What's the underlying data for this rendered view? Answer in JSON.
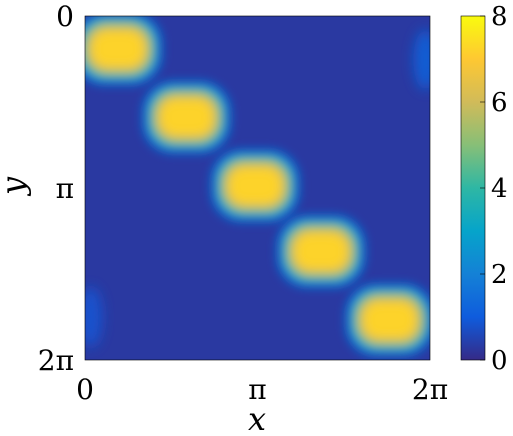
{
  "chart_data": {
    "type": "heatmap",
    "title": "",
    "xlabel": "x",
    "ylabel": "y",
    "x_ticks": [
      "0",
      "π",
      "2π"
    ],
    "y_ticks": [
      "0",
      "π",
      "2π"
    ],
    "xlim": [
      0,
      6.2832
    ],
    "ylim": [
      0,
      6.2832
    ],
    "y_axis_direction": "reversed (0 at top)",
    "grid": false,
    "colormap": "parula",
    "colorbar": {
      "ticks": [
        "0",
        "2",
        "4",
        "6",
        "8"
      ],
      "range": [
        0,
        8
      ],
      "placement": "right"
    },
    "background_value": 0.3,
    "features": [
      {
        "name": "blob-1",
        "x": 0.6,
        "y": 0.6,
        "peak": 7.6
      },
      {
        "name": "blob-2",
        "x": 1.85,
        "y": 1.85,
        "peak": 7.6
      },
      {
        "name": "blob-3",
        "x": 3.1,
        "y": 3.1,
        "peak": 7.6
      },
      {
        "name": "blob-4",
        "x": 4.3,
        "y": 4.3,
        "peak": 7.6
      },
      {
        "name": "blob-5",
        "x": 5.55,
        "y": 5.55,
        "peak": 7.6
      }
    ],
    "edge_patches": [
      {
        "name": "patch-top-right",
        "x": 6.2,
        "y": 0.8,
        "peak": 1.2
      },
      {
        "name": "patch-bottom-left",
        "x": 0.1,
        "y": 5.5,
        "peak": 0.9
      }
    ]
  }
}
